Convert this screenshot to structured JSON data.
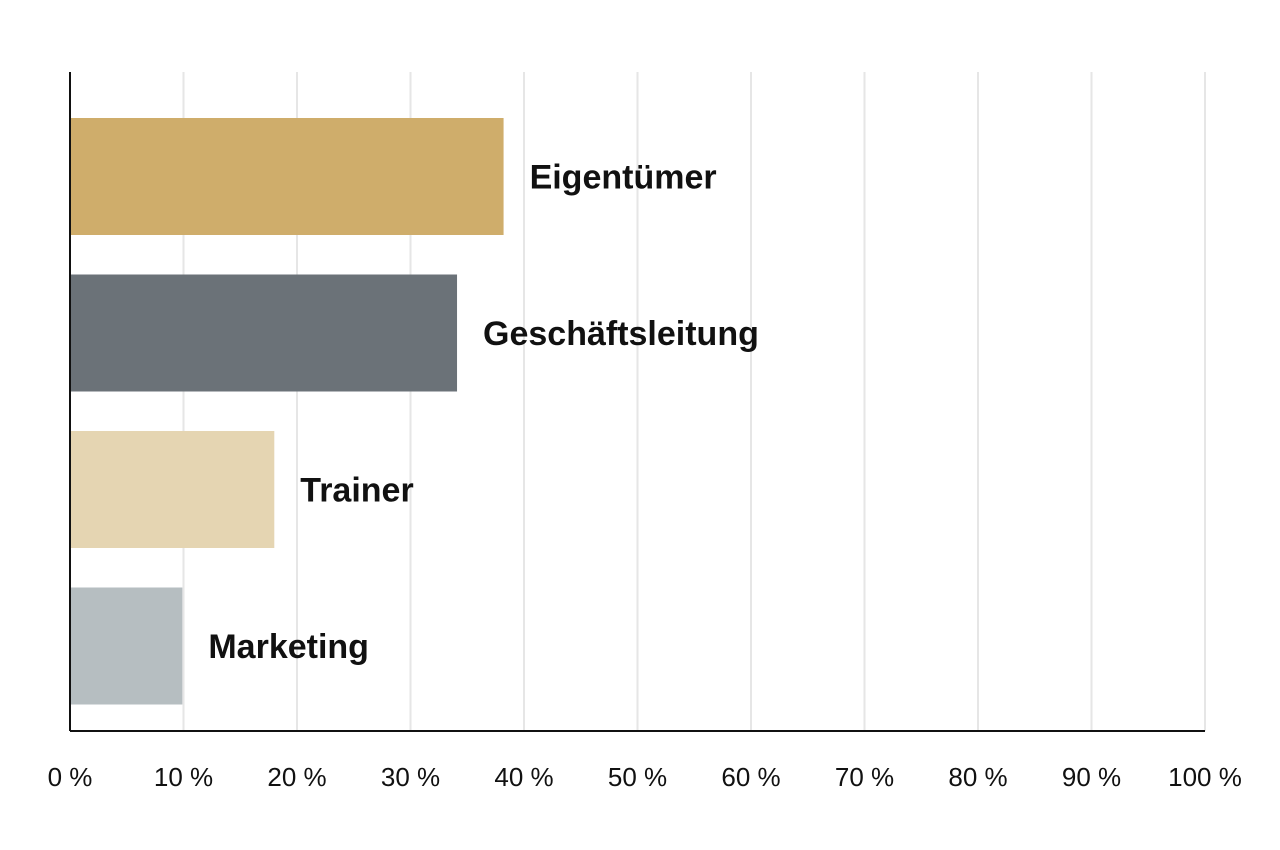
{
  "chart_data": {
    "type": "bar",
    "orientation": "horizontal",
    "categories": [
      "Eigentümer",
      "Geschäftsleitung",
      "Trainer",
      "Marketing"
    ],
    "values": [
      38.2,
      34.1,
      18.0,
      9.9
    ],
    "colors": [
      "#cfad6b",
      "#6b7278",
      "#e5d5b2",
      "#b6bec1"
    ],
    "xlim": [
      0,
      100
    ],
    "xticks": [
      0,
      10,
      20,
      30,
      40,
      50,
      60,
      70,
      80,
      90,
      100
    ],
    "xtick_labels": [
      "0 %",
      "10 %",
      "20 %",
      "30 %",
      "40 %",
      "50 %",
      "60 %",
      "70 %",
      "80 %",
      "90 %",
      "100 %"
    ],
    "grid": true,
    "labels_position": "right of bar",
    "title": "",
    "xlabel": "",
    "ylabel": ""
  }
}
